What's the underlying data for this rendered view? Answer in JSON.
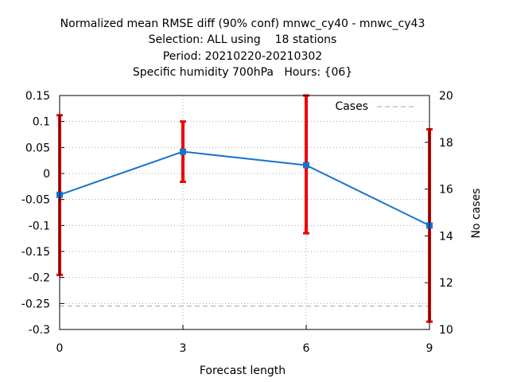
{
  "chart_data": {
    "type": "line",
    "title": [
      "Normalized mean RMSE diff (90% conf) mnwc_cy40 - mnwc_cy43",
      "Selection: ALL using    18 stations",
      "Period: 20210220-20210302",
      "Specific humidity 700hPa   Hours: {06}"
    ],
    "xlabel": "Forecast length",
    "ylabel": "",
    "y2label": "No cases",
    "x": [
      0,
      3,
      6,
      9
    ],
    "xlim": [
      0,
      9
    ],
    "xticks": [
      "0",
      "3",
      "6",
      "9"
    ],
    "ylim": [
      -0.3,
      0.15
    ],
    "yticks": [
      "0.15",
      "0.1",
      "0.05",
      "0",
      "-0.05",
      "-0.1",
      "-0.15",
      "-0.2",
      "-0.25",
      "-0.3"
    ],
    "y2lim": [
      10,
      20
    ],
    "y2ticks": [
      "20",
      "18",
      "16",
      "14",
      "12",
      "10"
    ],
    "grid": true,
    "legend": {
      "placement": "top-right",
      "entries": [
        "Cases"
      ]
    },
    "series": [
      {
        "values": [
          -0.041,
          0.042,
          0.016,
          -0.1
        ],
        "error_low": [
          -0.195,
          -0.016,
          -0.115,
          -0.285
        ],
        "error_high": [
          0.112,
          0.1,
          0.15,
          0.085
        ],
        "color": "#1874cd",
        "error_color": "#ee0000"
      },
      {
        "name": "Cases",
        "axis": "y2",
        "values": [
          11,
          11,
          11,
          11
        ],
        "style": "dashed",
        "color": "#a0a0a0"
      }
    ]
  }
}
